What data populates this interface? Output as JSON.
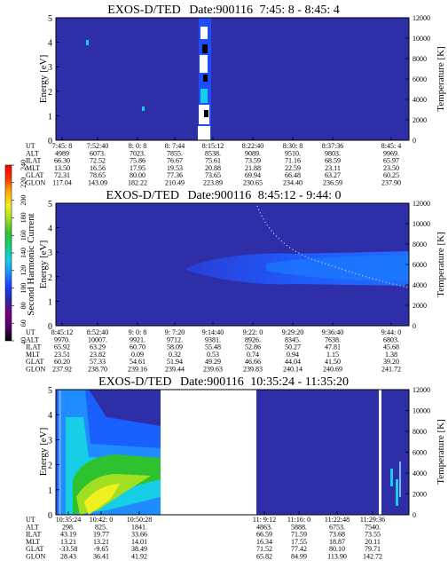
{
  "colors": {
    "background_level": "#2e2fa8",
    "band_blue": "#1a60ff",
    "band_light": "#7fb0ff",
    "cyan": "#19c8e6",
    "green": "#2fbf4a",
    "yellow": "#f0f020",
    "data_gap": "#ffffff"
  },
  "colorbar": {
    "label": "Second Harmonic Current",
    "ticks": [
      "40",
      "60",
      "80",
      "100",
      "120",
      "140",
      "160",
      "180",
      "200",
      "220",
      "240"
    ],
    "colors": [
      "#000000",
      "#4a0066",
      "#7a007a",
      "#2828a0",
      "#1a3cff",
      "#1f8cff",
      "#16cfe6",
      "#15d07a",
      "#2fc22f",
      "#a0e020",
      "#f0f020",
      "#ffb000",
      "#ff3000",
      "#ff0000"
    ]
  },
  "row_labels": [
    "UT",
    "ALT",
    "ILAT",
    "MLT",
    "GLAT",
    "GLON"
  ],
  "chart_data": [
    {
      "type": "heatmap",
      "title": "EXOS-D/TED",
      "date_label": "Date:900116",
      "time_range": "7:45: 8 - 8:45: 4",
      "ylabel": "Energy [eV]",
      "y2label": "Temperature [K]",
      "ylim": [
        0,
        5
      ],
      "y2lim": [
        0,
        12000
      ],
      "yticks": [
        "0",
        "1",
        "2",
        "3",
        "4",
        "5"
      ],
      "y2ticks": [
        "0",
        "2000",
        "4000",
        "6000",
        "8000",
        "10000",
        "12000"
      ],
      "columns": [
        [
          "7:45: 8",
          "4989",
          "66.30",
          "13.50",
          "72.31",
          "117.04"
        ],
        [
          "7:52:40",
          "6073.",
          "72.52",
          "16.56",
          "78.65",
          "143.09"
        ],
        [
          "8: 0: 8",
          "7023.",
          "75.86",
          "17.95",
          "80.00",
          "182.22"
        ],
        [
          "8: 7:44",
          "7855.",
          "76.67",
          "19.53",
          "77.36",
          "210.49"
        ],
        [
          "8:15:12",
          "8538.",
          "75.61",
          "20.88",
          "73.65",
          "223.89"
        ],
        [
          "8:22:40",
          "9089.",
          "73.59",
          "21.88",
          "69.94",
          "230.65"
        ],
        [
          "8:30: 8",
          "9510.",
          "71.16",
          "22.59",
          "66.48",
          "234.40"
        ],
        [
          "8:37:36",
          "9803.",
          "68.59",
          "23.11",
          "63.27",
          "236.59"
        ],
        [
          "8:45: 4",
          "9969.",
          "65.97",
          "23.50",
          "60.25",
          "237.90"
        ]
      ]
    },
    {
      "type": "heatmap",
      "title": "EXOS-D/TED",
      "date_label": "Date:900116",
      "time_range": "8:45:12 - 9:44: 0",
      "ylabel": "Energy [eV]",
      "y2label": "Temperature [K]",
      "ylim": [
        0,
        5
      ],
      "y2lim": [
        0,
        12000
      ],
      "yticks": [
        "0",
        "1",
        "2",
        "3",
        "4",
        "5"
      ],
      "y2ticks": [
        "0",
        "2000",
        "4000",
        "6000",
        "8000",
        "10000",
        "12000"
      ],
      "columns": [
        [
          "8:45:12",
          "9970.",
          "65.92",
          "23.51",
          "60.20",
          "237.92"
        ],
        [
          "8:52:40",
          "10007.",
          "63.29",
          "23.82",
          "57.33",
          "238.70"
        ],
        [
          "9: 0: 8",
          "9921.",
          "60.70",
          "0.09",
          "54.61",
          "239.16"
        ],
        [
          "9: 7:20",
          "9712.",
          "58.09",
          "0.32",
          "51.94",
          "239.44"
        ],
        [
          "9:14:40",
          "9381.",
          "55.48",
          "0.53",
          "49.29",
          "239.63"
        ],
        [
          "9:22: 0",
          "8926.",
          "52.86",
          "0.74",
          "46.66",
          "239.83"
        ],
        [
          "9:29:20",
          "8345.",
          "50.27",
          "0.94",
          "44.04",
          "240.14"
        ],
        [
          "9:36:40",
          "7638.",
          "47.81",
          "1.15",
          "41.50",
          "240.69"
        ],
        [
          "9:44: 0",
          "6803.",
          "45.68",
          "1.38",
          "39.20",
          "241.72"
        ]
      ]
    },
    {
      "type": "heatmap",
      "title": "EXOS-D/TED",
      "date_label": "Date:900116",
      "time_range": "10:35:24 - 11:35:20",
      "ylabel": "Energy [eV]",
      "y2label": "Temperature [K]",
      "ylim": [
        0,
        5
      ],
      "y2lim": [
        0,
        12000
      ],
      "yticks": [
        "0",
        "1",
        "2",
        "3",
        "4",
        "5"
      ],
      "y2ticks": [
        "0",
        "2000",
        "4000",
        "6000",
        "8000",
        "10000",
        "12000"
      ],
      "columns": [
        [
          "10:35:24",
          "298.",
          "43.19",
          "13.21",
          "-33.58",
          "28.43"
        ],
        [
          "10:42: 0",
          "825.",
          "19.77",
          "13.21",
          "-9.65",
          "36.41"
        ],
        [
          "10:50:28",
          "1841.",
          "33.66",
          "14.01",
          "38.49",
          "41.92"
        ],
        [
          "11: 9:12",
          "4863.",
          "66.59",
          "16.34",
          "71.52",
          "65.82"
        ],
        [
          "11:16: 0",
          "5888.",
          "71.59",
          "17.55",
          "77.42",
          "84.99"
        ],
        [
          "11:22:48",
          "6753.",
          "73.68",
          "18.87",
          "80.10",
          "113.90"
        ],
        [
          "11:29:36",
          "7540.",
          "73.55",
          "20.11",
          "79.71",
          "142.72"
        ]
      ]
    }
  ]
}
